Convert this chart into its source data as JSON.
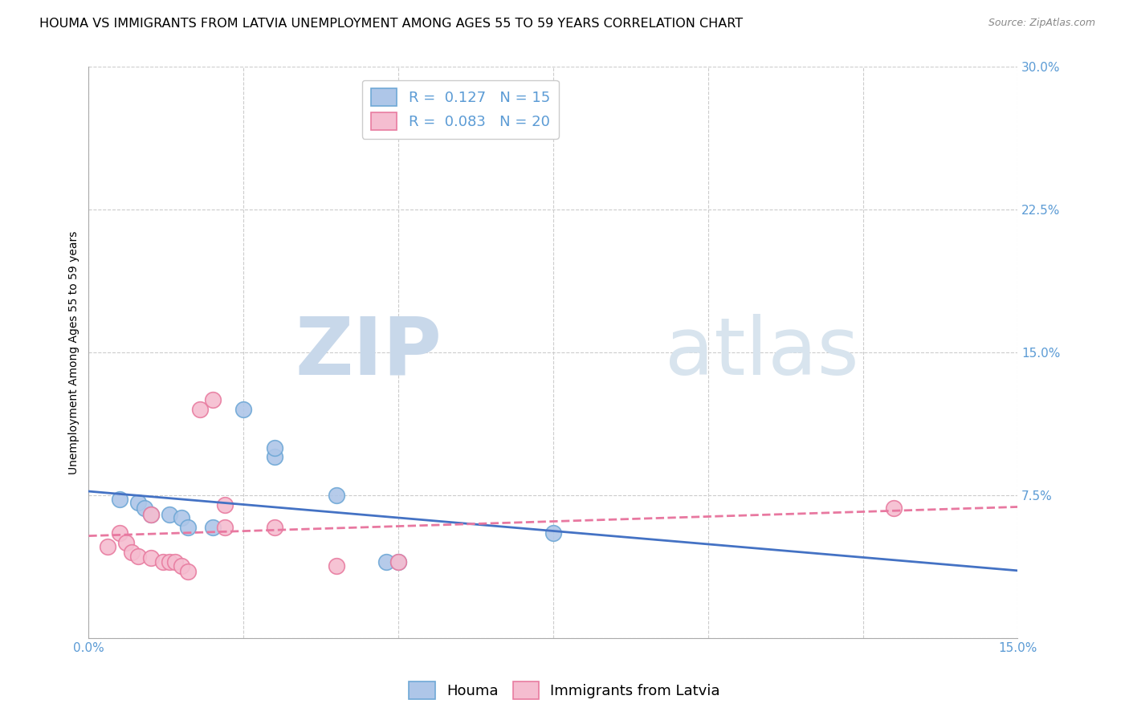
{
  "title": "HOUMA VS IMMIGRANTS FROM LATVIA UNEMPLOYMENT AMONG AGES 55 TO 59 YEARS CORRELATION CHART",
  "source": "Source: ZipAtlas.com",
  "ylabel": "Unemployment Among Ages 55 to 59 years",
  "xlim": [
    0.0,
    0.15
  ],
  "ylim": [
    0.0,
    0.3
  ],
  "xticks": [
    0.0,
    0.025,
    0.05,
    0.075,
    0.1,
    0.125,
    0.15
  ],
  "yticks": [
    0.0,
    0.075,
    0.15,
    0.225,
    0.3
  ],
  "houma_R": "0.127",
  "houma_N": "15",
  "latvia_R": "0.083",
  "latvia_N": "20",
  "houma_color": "#aec6e8",
  "houma_edge_color": "#6fa8d6",
  "latvia_color": "#f5bdd0",
  "latvia_edge_color": "#e87ca0",
  "houma_scatter": [
    [
      0.005,
      0.073
    ],
    [
      0.008,
      0.071
    ],
    [
      0.009,
      0.068
    ],
    [
      0.01,
      0.065
    ],
    [
      0.013,
      0.065
    ],
    [
      0.015,
      0.063
    ],
    [
      0.016,
      0.058
    ],
    [
      0.02,
      0.058
    ],
    [
      0.025,
      0.12
    ],
    [
      0.03,
      0.095
    ],
    [
      0.03,
      0.1
    ],
    [
      0.04,
      0.075
    ],
    [
      0.048,
      0.04
    ],
    [
      0.05,
      0.04
    ],
    [
      0.075,
      0.055
    ]
  ],
  "latvia_scatter": [
    [
      0.003,
      0.048
    ],
    [
      0.005,
      0.055
    ],
    [
      0.006,
      0.05
    ],
    [
      0.007,
      0.045
    ],
    [
      0.008,
      0.043
    ],
    [
      0.01,
      0.042
    ],
    [
      0.01,
      0.065
    ],
    [
      0.012,
      0.04
    ],
    [
      0.013,
      0.04
    ],
    [
      0.014,
      0.04
    ],
    [
      0.015,
      0.038
    ],
    [
      0.016,
      0.035
    ],
    [
      0.018,
      0.12
    ],
    [
      0.02,
      0.125
    ],
    [
      0.022,
      0.058
    ],
    [
      0.022,
      0.07
    ],
    [
      0.03,
      0.058
    ],
    [
      0.04,
      0.038
    ],
    [
      0.05,
      0.04
    ],
    [
      0.13,
      0.068
    ]
  ],
  "houma_line_color": "#4472c4",
  "latvia_line_color": "#e878a0",
  "background_color": "#ffffff",
  "grid_color": "#cccccc",
  "watermark_zip_color": "#c8d8ea",
  "watermark_atlas_color": "#d8e4ee",
  "title_fontsize": 11.5,
  "axis_label_fontsize": 10,
  "tick_fontsize": 11,
  "legend_fontsize": 13
}
